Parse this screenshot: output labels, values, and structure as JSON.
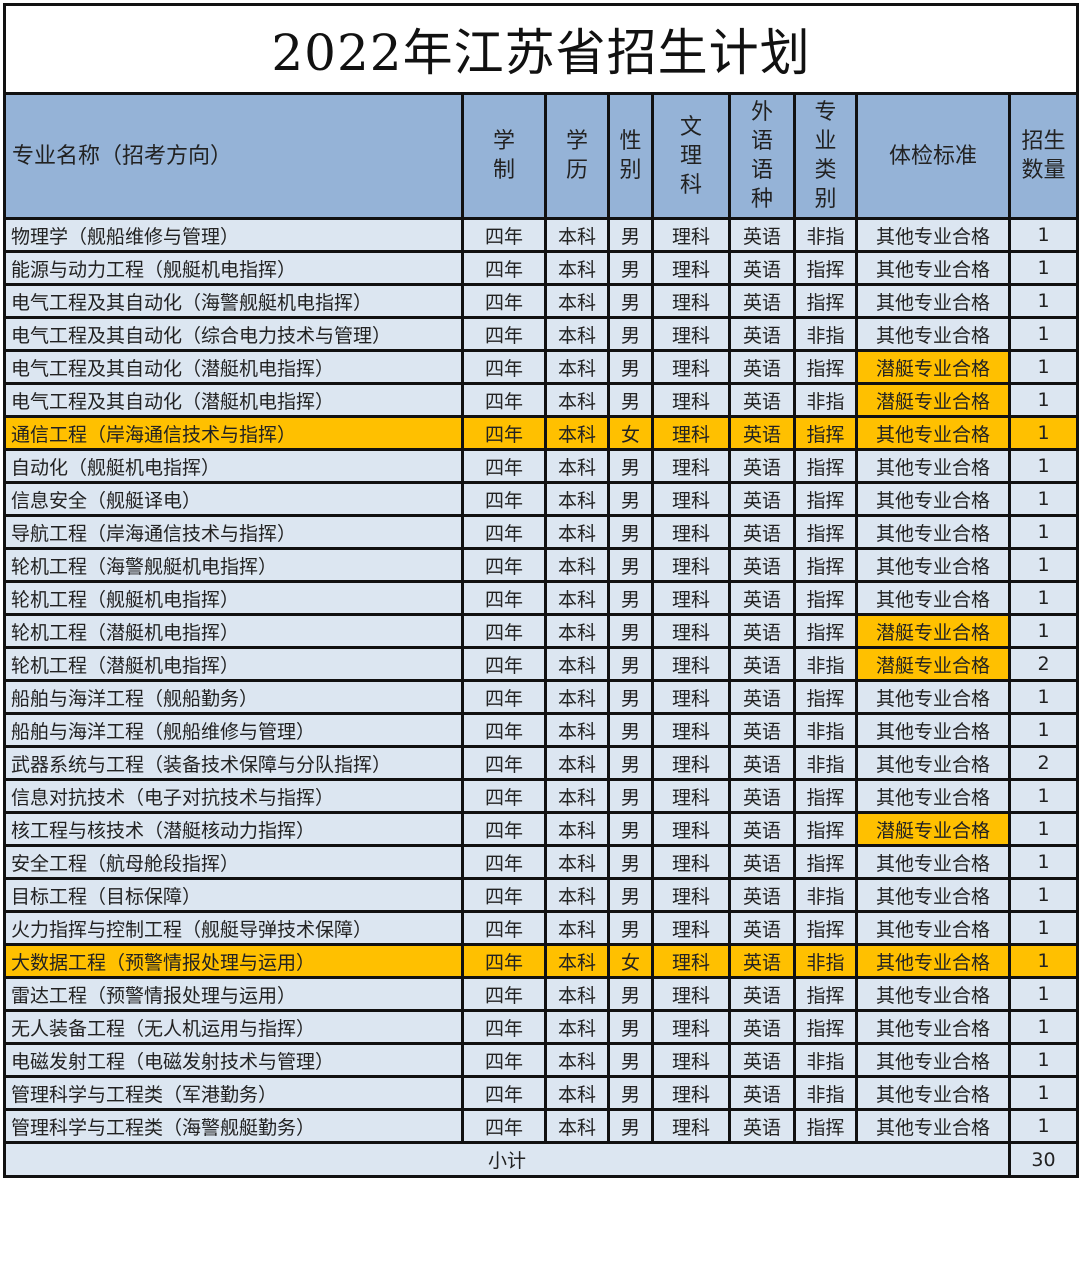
{
  "title": "2022年江苏省招生计划",
  "colors": {
    "header": "#95b3d7",
    "row": "#dce6f1",
    "highlight": "#ffc000"
  },
  "headers": [
    "专业名称（招考方向）",
    "学制",
    "学历",
    "性别",
    "文理科",
    "外语语种",
    "专业类别",
    "体检标准",
    "招生数量"
  ],
  "rows": [
    {
      "cells": [
        "物理学（舰船维修与管理）",
        "四年",
        "本科",
        "男",
        "理科",
        "英语",
        "非指",
        "其他专业合格",
        "1"
      ]
    },
    {
      "cells": [
        "能源与动力工程（舰艇机电指挥）",
        "四年",
        "本科",
        "男",
        "理科",
        "英语",
        "指挥",
        "其他专业合格",
        "1"
      ]
    },
    {
      "cells": [
        "电气工程及其自动化（海警舰艇机电指挥）",
        "四年",
        "本科",
        "男",
        "理科",
        "英语",
        "指挥",
        "其他专业合格",
        "1"
      ]
    },
    {
      "cells": [
        "电气工程及其自动化（综合电力技术与管理）",
        "四年",
        "本科",
        "男",
        "理科",
        "英语",
        "非指",
        "其他专业合格",
        "1"
      ]
    },
    {
      "cells": [
        "电气工程及其自动化（潜艇机电指挥）",
        "四年",
        "本科",
        "男",
        "理科",
        "英语",
        "指挥",
        "潜艇专业合格",
        "1"
      ],
      "highlight_exam": true
    },
    {
      "cells": [
        "电气工程及其自动化（潜艇机电指挥）",
        "四年",
        "本科",
        "男",
        "理科",
        "英语",
        "非指",
        "潜艇专业合格",
        "1"
      ],
      "highlight_exam": true
    },
    {
      "cells": [
        "通信工程（岸海通信技术与指挥）",
        "四年",
        "本科",
        "女",
        "理科",
        "英语",
        "指挥",
        "其他专业合格",
        "1"
      ],
      "highlight_row": true
    },
    {
      "cells": [
        "自动化（舰艇机电指挥）",
        "四年",
        "本科",
        "男",
        "理科",
        "英语",
        "指挥",
        "其他专业合格",
        "1"
      ]
    },
    {
      "cells": [
        "信息安全（舰艇译电）",
        "四年",
        "本科",
        "男",
        "理科",
        "英语",
        "指挥",
        "其他专业合格",
        "1"
      ]
    },
    {
      "cells": [
        "导航工程（岸海通信技术与指挥）",
        "四年",
        "本科",
        "男",
        "理科",
        "英语",
        "指挥",
        "其他专业合格",
        "1"
      ]
    },
    {
      "cells": [
        "轮机工程（海警舰艇机电指挥）",
        "四年",
        "本科",
        "男",
        "理科",
        "英语",
        "指挥",
        "其他专业合格",
        "1"
      ]
    },
    {
      "cells": [
        "轮机工程（舰艇机电指挥）",
        "四年",
        "本科",
        "男",
        "理科",
        "英语",
        "指挥",
        "其他专业合格",
        "1"
      ]
    },
    {
      "cells": [
        "轮机工程（潜艇机电指挥）",
        "四年",
        "本科",
        "男",
        "理科",
        "英语",
        "指挥",
        "潜艇专业合格",
        "1"
      ],
      "highlight_exam": true
    },
    {
      "cells": [
        "轮机工程（潜艇机电指挥）",
        "四年",
        "本科",
        "男",
        "理科",
        "英语",
        "非指",
        "潜艇专业合格",
        "2"
      ],
      "highlight_exam": true
    },
    {
      "cells": [
        "船舶与海洋工程（舰船勤务）",
        "四年",
        "本科",
        "男",
        "理科",
        "英语",
        "指挥",
        "其他专业合格",
        "1"
      ]
    },
    {
      "cells": [
        "船舶与海洋工程（舰船维修与管理）",
        "四年",
        "本科",
        "男",
        "理科",
        "英语",
        "非指",
        "其他专业合格",
        "1"
      ]
    },
    {
      "cells": [
        "武器系统与工程（装备技术保障与分队指挥）",
        "四年",
        "本科",
        "男",
        "理科",
        "英语",
        "非指",
        "其他专业合格",
        "2"
      ]
    },
    {
      "cells": [
        "信息对抗技术（电子对抗技术与指挥）",
        "四年",
        "本科",
        "男",
        "理科",
        "英语",
        "指挥",
        "其他专业合格",
        "1"
      ]
    },
    {
      "cells": [
        "核工程与核技术（潜艇核动力指挥）",
        "四年",
        "本科",
        "男",
        "理科",
        "英语",
        "指挥",
        "潜艇专业合格",
        "1"
      ],
      "highlight_exam": true
    },
    {
      "cells": [
        "安全工程（航母舱段指挥）",
        "四年",
        "本科",
        "男",
        "理科",
        "英语",
        "指挥",
        "其他专业合格",
        "1"
      ]
    },
    {
      "cells": [
        "目标工程（目标保障）",
        "四年",
        "本科",
        "男",
        "理科",
        "英语",
        "非指",
        "其他专业合格",
        "1"
      ]
    },
    {
      "cells": [
        "火力指挥与控制工程（舰艇导弹技术保障）",
        "四年",
        "本科",
        "男",
        "理科",
        "英语",
        "指挥",
        "其他专业合格",
        "1"
      ]
    },
    {
      "cells": [
        "大数据工程（预警情报处理与运用）",
        "四年",
        "本科",
        "女",
        "理科",
        "英语",
        "非指",
        "其他专业合格",
        "1"
      ],
      "highlight_row": true
    },
    {
      "cells": [
        "雷达工程（预警情报处理与运用）",
        "四年",
        "本科",
        "男",
        "理科",
        "英语",
        "指挥",
        "其他专业合格",
        "1"
      ]
    },
    {
      "cells": [
        "无人装备工程（无人机运用与指挥）",
        "四年",
        "本科",
        "男",
        "理科",
        "英语",
        "指挥",
        "其他专业合格",
        "1"
      ]
    },
    {
      "cells": [
        "电磁发射工程（电磁发射技术与管理）",
        "四年",
        "本科",
        "男",
        "理科",
        "英语",
        "非指",
        "其他专业合格",
        "1"
      ]
    },
    {
      "cells": [
        "管理科学与工程类（军港勤务）",
        "四年",
        "本科",
        "男",
        "理科",
        "英语",
        "非指",
        "其他专业合格",
        "1"
      ]
    },
    {
      "cells": [
        "管理科学与工程类（海警舰艇勤务）",
        "四年",
        "本科",
        "男",
        "理科",
        "英语",
        "指挥",
        "其他专业合格",
        "1"
      ]
    }
  ],
  "subtotal": {
    "label": "小计",
    "value": "30"
  }
}
